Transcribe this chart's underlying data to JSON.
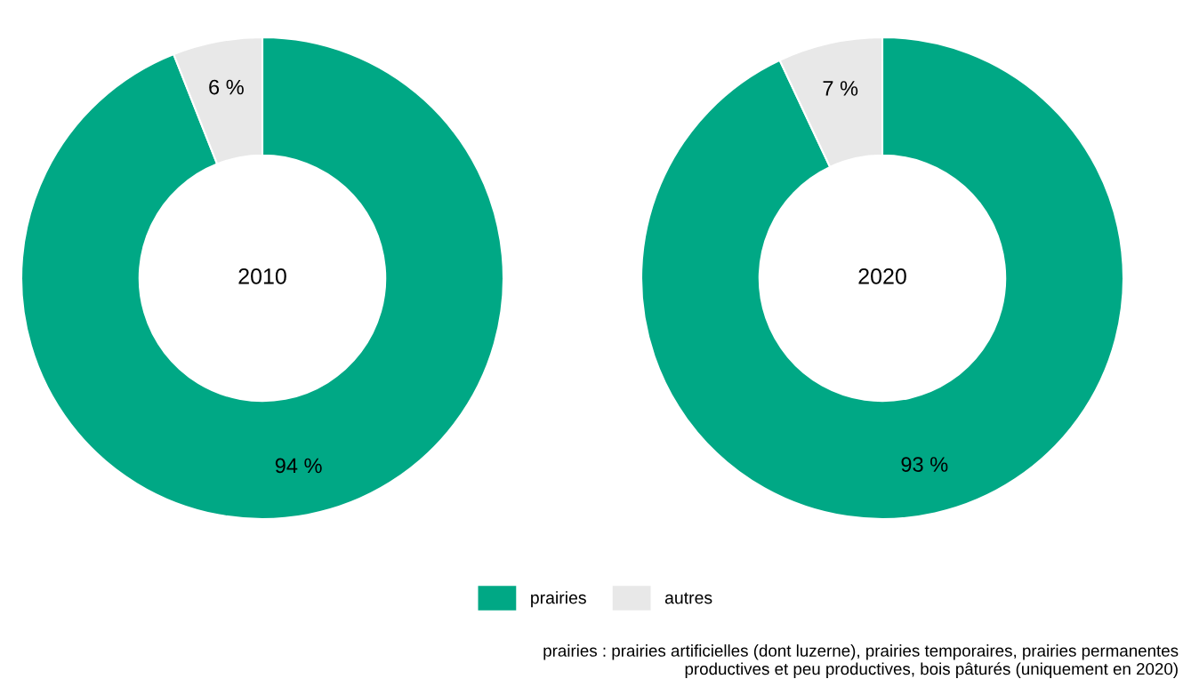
{
  "chart_data": [
    {
      "type": "donut",
      "title": "2010",
      "categories": [
        "prairies",
        "autres"
      ],
      "values": [
        94,
        6
      ],
      "colors": [
        "#00a885",
        "#e8e8e8"
      ],
      "value_labels": [
        "94 %",
        "6 %"
      ],
      "legend": "bottom"
    },
    {
      "type": "donut",
      "title": "2020",
      "categories": [
        null,
        null
      ],
      "values": [
        93,
        7
      ],
      "colors": [
        "#00a885",
        "#e8e8e8"
      ],
      "value_labels": [
        "93 %",
        "7 %"
      ],
      "annotations": [
        "prairies : prairies artificielles (dont luzerne), prairies temporaires, prairies permanentes\nproductives et peu productives, bois pâturés (uniquement en 2020)"
      ]
    }
  ]
}
